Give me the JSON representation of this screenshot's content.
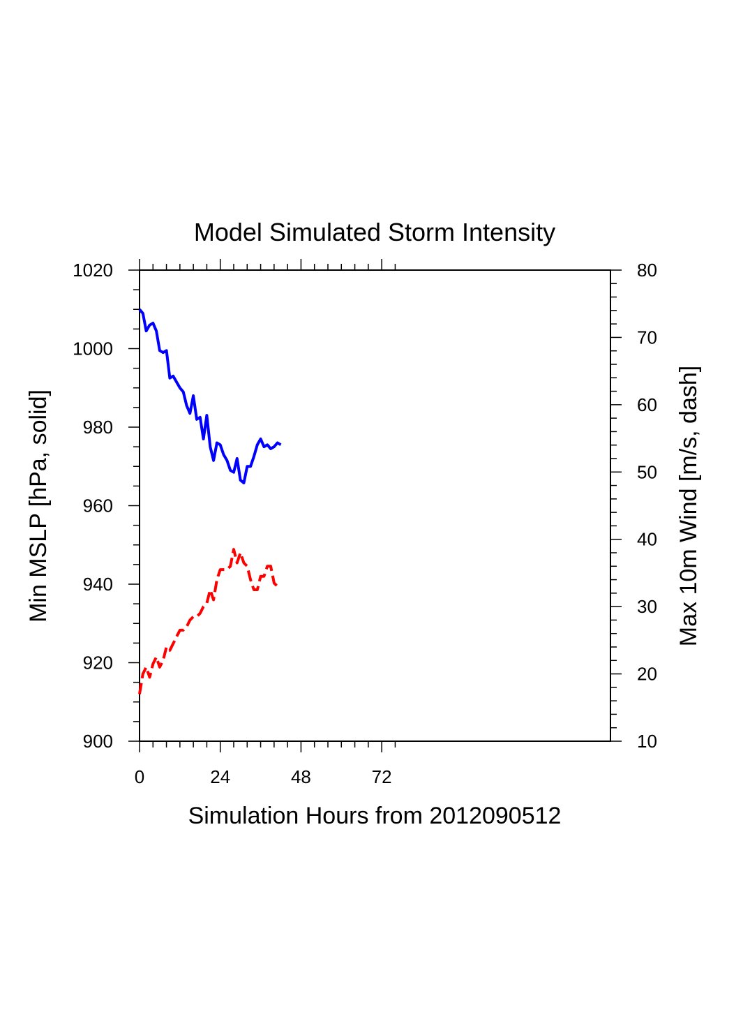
{
  "chart_data": {
    "type": "line",
    "title": "Model Simulated Storm Intensity",
    "xlabel": "Simulation Hours from 2012090512",
    "ylabel_left": "Min MSLP  [hPa, solid]",
    "ylabel_right": "Max 10m Wind  [m/s, dash]",
    "xlim": [
      0,
      140
    ],
    "ylim_left": [
      900,
      1020
    ],
    "ylim_right": [
      10,
      80
    ],
    "x_ticks": [
      0,
      24,
      48,
      72
    ],
    "y_ticks_left": [
      900,
      920,
      940,
      960,
      980,
      1000,
      1020
    ],
    "y_ticks_right": [
      10,
      20,
      30,
      40,
      50,
      60,
      70,
      80
    ],
    "grid": false,
    "series": [
      {
        "name": "Min MSLP",
        "axis": "left",
        "style": "solid",
        "color": "#0000ff",
        "x": [
          0,
          1,
          2,
          3,
          4,
          5,
          6,
          7,
          8,
          9,
          10,
          11,
          12,
          13,
          14,
          15,
          16,
          17,
          18,
          19,
          20,
          21,
          22,
          23,
          24,
          25,
          26,
          27,
          28,
          29,
          30,
          31,
          32,
          33,
          34,
          35,
          36,
          37,
          38,
          39,
          40,
          41,
          42
        ],
        "values": [
          1010,
          1009,
          1004.5,
          1006,
          1006.5,
          1004.5,
          999.5,
          999,
          999.5,
          992.5,
          993,
          991.5,
          990,
          989,
          985.5,
          983.5,
          988,
          982,
          982.5,
          977,
          983,
          975,
          971.5,
          976,
          975.5,
          973,
          971.5,
          969,
          968.5,
          972,
          966.5,
          965.8,
          970,
          970,
          972.5,
          975.5,
          977,
          975,
          975.5,
          974.5,
          975,
          976,
          975.5
        ]
      },
      {
        "name": "Max 10m Wind",
        "axis": "right",
        "style": "dashed",
        "color": "#ff0000",
        "x": [
          0,
          1,
          2,
          3,
          4,
          5,
          6,
          7,
          8,
          9,
          10,
          11,
          12,
          13,
          14,
          15,
          16,
          17,
          18,
          19,
          20,
          21,
          22,
          23,
          24,
          25,
          26,
          27,
          28,
          29,
          30,
          31,
          32,
          33,
          34,
          35,
          36,
          37,
          38,
          39,
          40,
          41,
          42
        ],
        "values": [
          17,
          20,
          21,
          19.5,
          21.5,
          22.5,
          21,
          22,
          24,
          23.5,
          24.5,
          25.5,
          26.5,
          26.5,
          27,
          28,
          28.5,
          28.5,
          29,
          30,
          30.5,
          32.5,
          31,
          34,
          35.5,
          35.5,
          35.5,
          36,
          38.5,
          36.5,
          38,
          36.5,
          36,
          34,
          32.5,
          32.5,
          34.5,
          34.5,
          36,
          36,
          33.5,
          33,
          33
        ]
      }
    ]
  }
}
